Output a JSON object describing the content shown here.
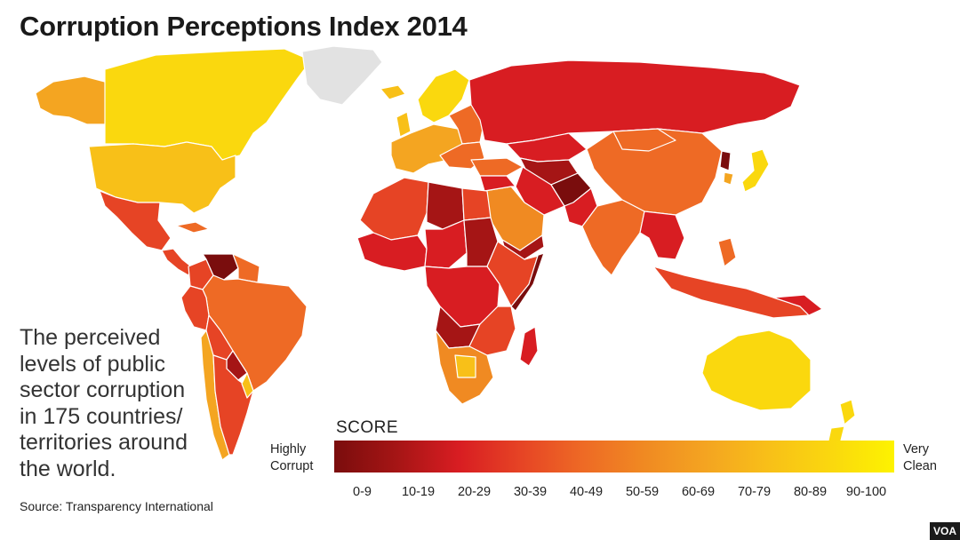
{
  "title": "Corruption Perceptions Index 2014",
  "description": "The perceived levels of public sector corruption in 175 countries/ territories around the world.",
  "source": "Source: Transparency International",
  "legend": {
    "score_label": "SCORE",
    "low_label": "Highly Corrupt",
    "high_label": "Very Clean",
    "ranges": [
      "0-9",
      "10-19",
      "20-29",
      "30-39",
      "40-49",
      "50-59",
      "60-69",
      "70-79",
      "80-89",
      "90-100"
    ],
    "colors": [
      "#7a0d0d",
      "#a51515",
      "#d81d22",
      "#e64425",
      "#ee6a25",
      "#f08a22",
      "#f4a521",
      "#f8c018",
      "#fad80e",
      "#fdf300"
    ]
  },
  "map_colors": {
    "no_data": "#e2e2e2",
    "ocean": "#ffffff",
    "border": "#ffffff"
  },
  "logo": "VOA"
}
